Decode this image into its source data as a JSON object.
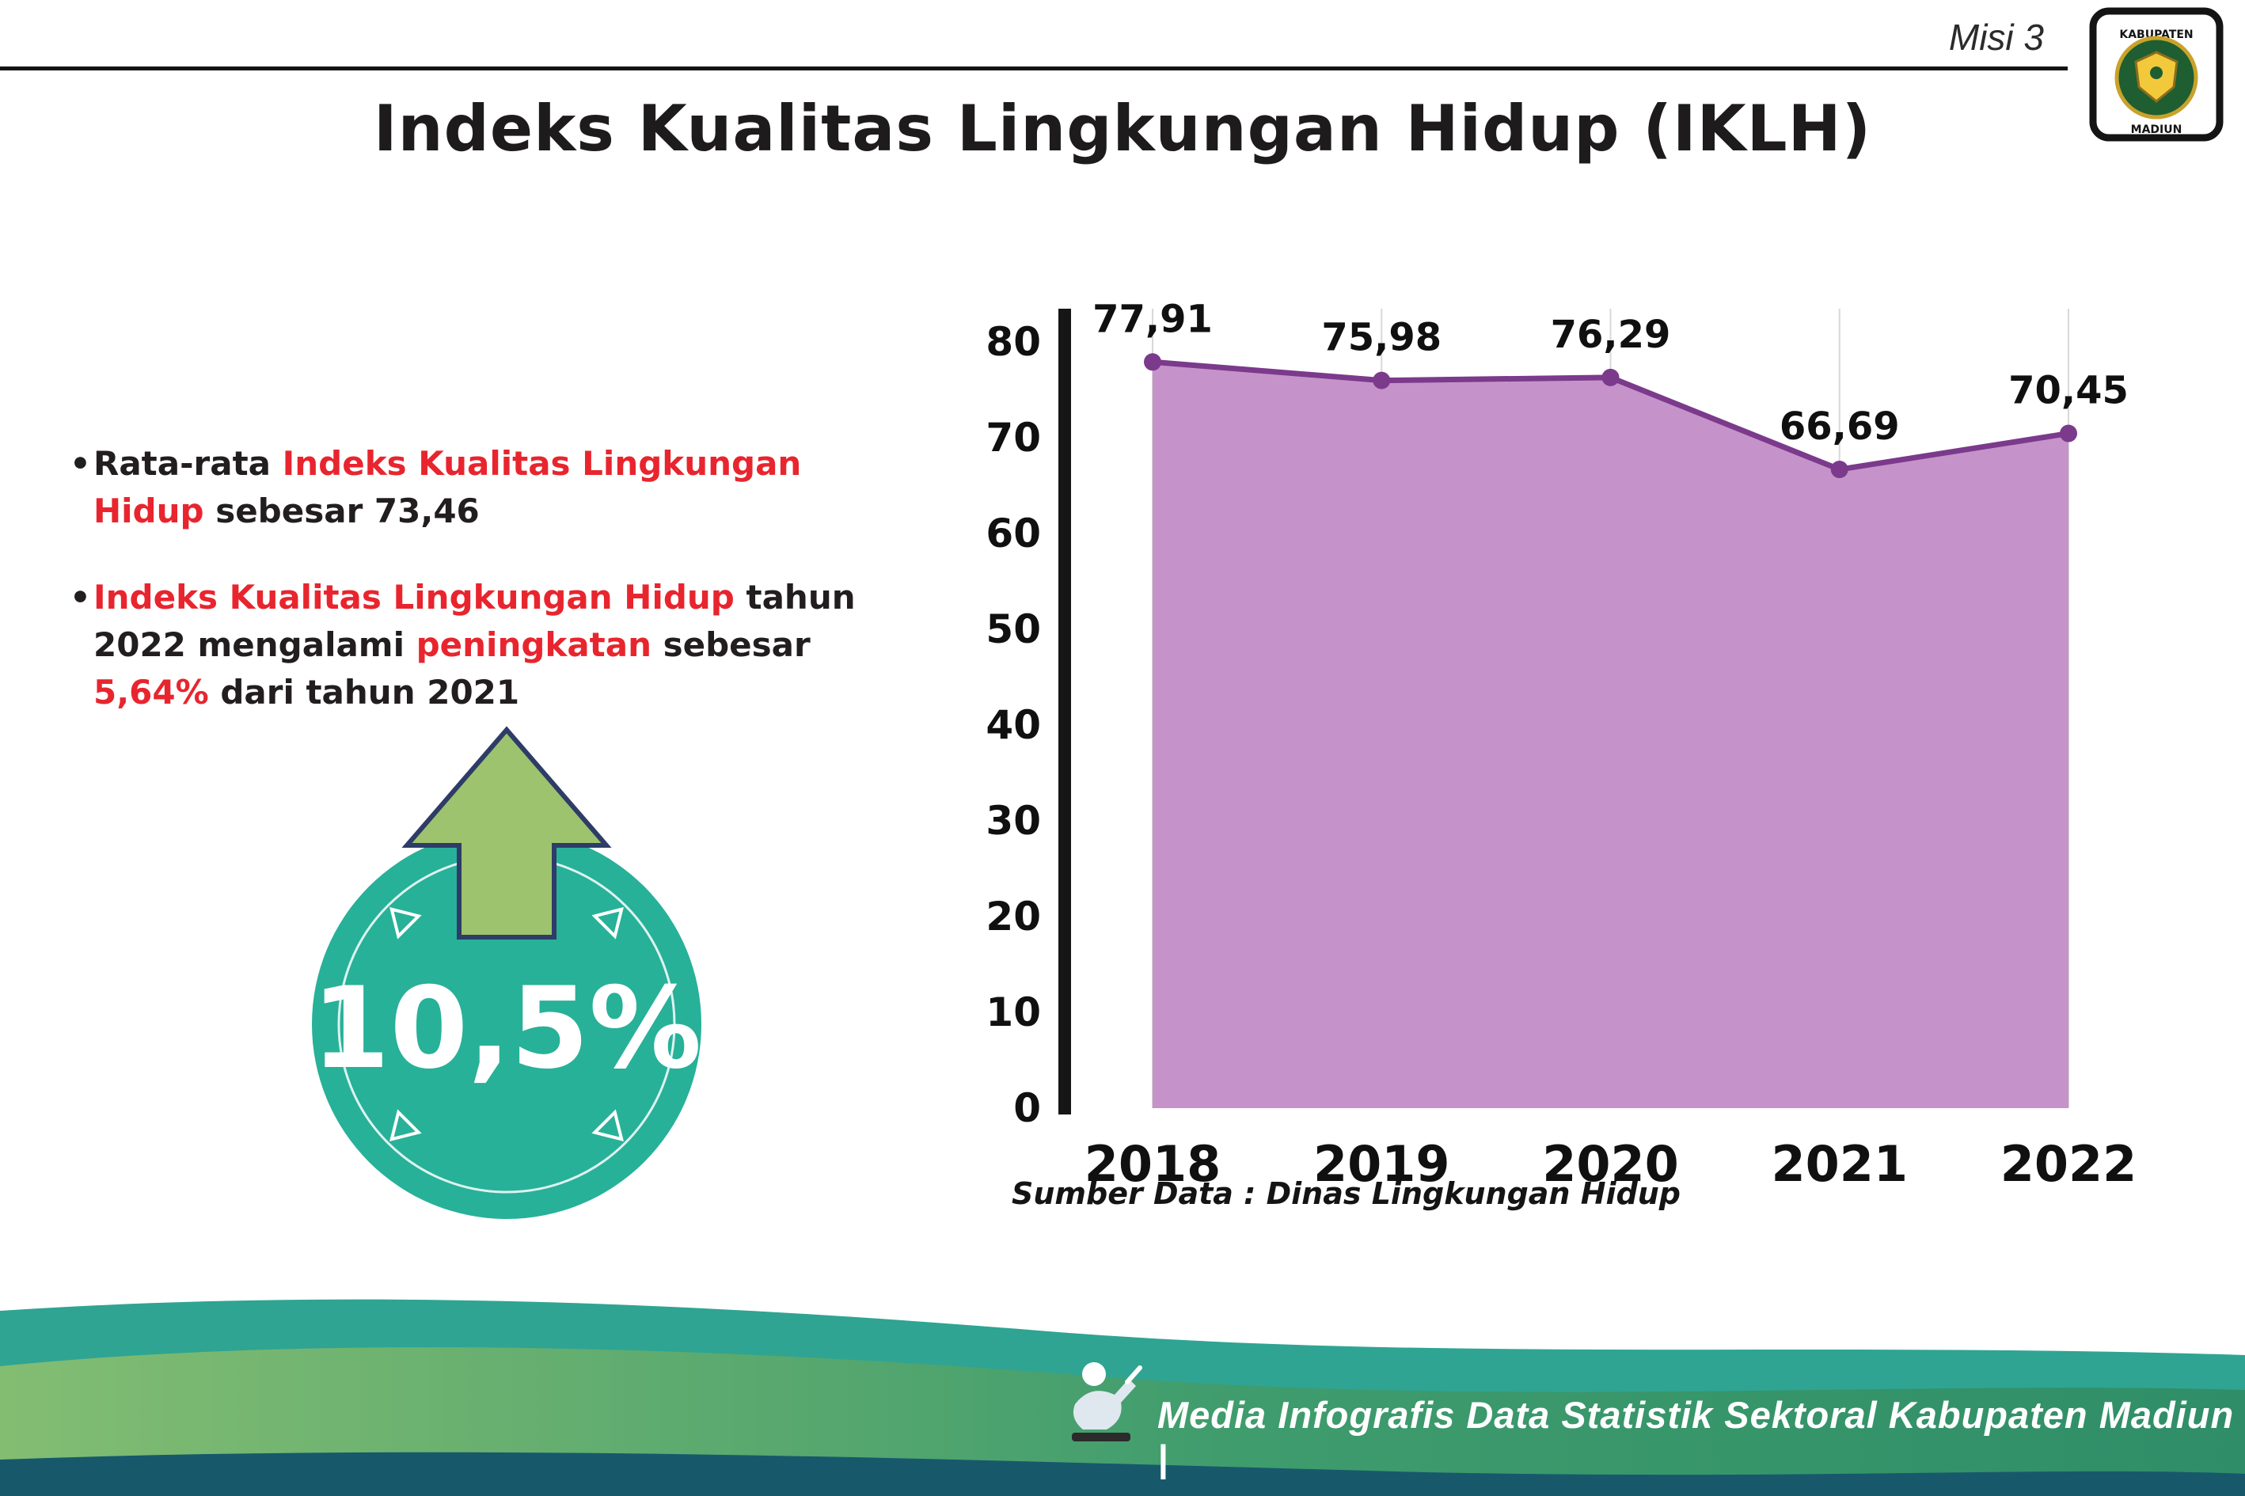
{
  "page": {
    "misi_label": "Misi 3",
    "title": "Indeks Kualitas Lingkungan Hidup (IKLH)",
    "source_note": "Sumber Data : Dinas Lingkungan Hidup",
    "footer_text": "Media Infografis Data Statistik Sektoral Kabupaten Madiun |",
    "logo": {
      "top_text": "KABUPATEN",
      "bottom_text": "MADIUN"
    }
  },
  "bullets": [
    {
      "segments": [
        {
          "text": "Rata-rata ",
          "color": "dark"
        },
        {
          "text": "Indeks Kualitas Lingkungan Hidup",
          "color": "red"
        },
        {
          "text": " sebesar 73,46",
          "color": "dark"
        }
      ]
    },
    {
      "segments": [
        {
          "text": "Indeks Kualitas Lingkungan Hidup",
          "color": "red"
        },
        {
          "text": " tahun 2022 mengalami ",
          "color": "dark"
        },
        {
          "text": "peningkatan",
          "color": "red"
        },
        {
          "text": " sebesar ",
          "color": "dark"
        },
        {
          "text": "5,64%",
          "color": "red"
        },
        {
          "text": " dari tahun 2021",
          "color": "dark"
        }
      ]
    }
  ],
  "badge": {
    "value": "10,5%",
    "meaning": "increase",
    "circle_color": "#27b198",
    "arrow_color": "#9dc36e",
    "arrow_outline": "#2e3c68"
  },
  "colors": {
    "accent_red": "#e8252e",
    "text_dark": "#221e1f"
  },
  "chart_data": {
    "type": "area",
    "title": "Indeks Kualitas Lingkungan Hidup (IKLH)",
    "categories": [
      "2018",
      "2019",
      "2020",
      "2021",
      "2022"
    ],
    "values": [
      77.91,
      75.98,
      76.29,
      66.69,
      70.45
    ],
    "value_labels": [
      "77,91",
      "75,98",
      "76,29",
      "66,69",
      "70,45"
    ],
    "xlabel": "",
    "ylabel": "",
    "ylim": [
      0,
      80
    ],
    "ytick_step": 10,
    "grid": "vertical-light",
    "legend": "none",
    "line_color": "#7b3a8c",
    "fill_color": "#c593c9",
    "source": "Sumber Data : Dinas Lingkungan Hidup"
  }
}
